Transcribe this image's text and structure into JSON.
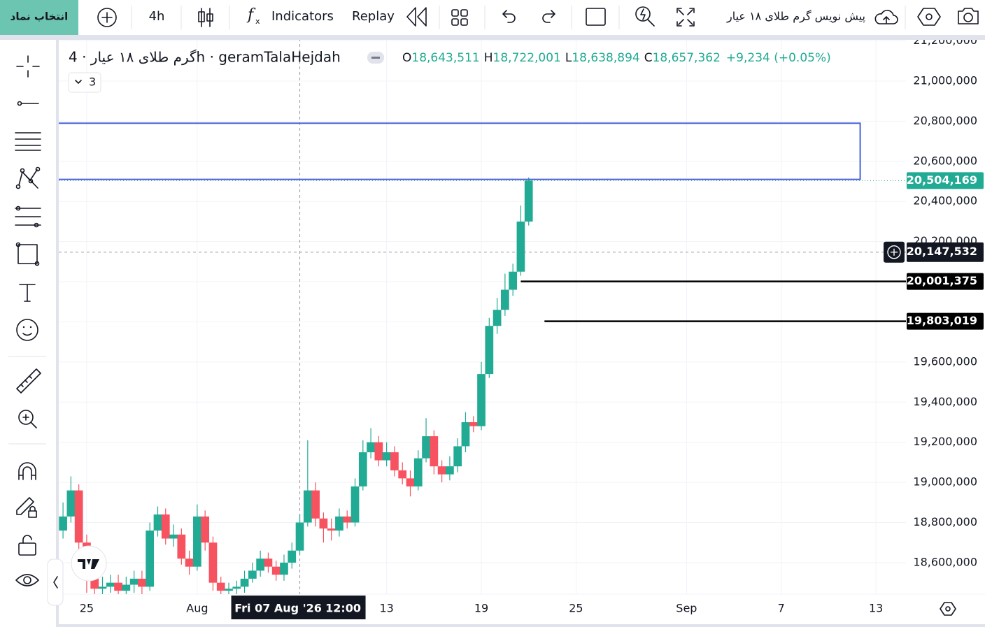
{
  "toolbar": {
    "symbol_button": "انتخاب نماد",
    "interval": "4h",
    "indicators": "Indicators",
    "replay": "Replay",
    "layout_name": "پیش نویس گرم طلای ۱۸ عیار"
  },
  "legend": {
    "symbol": "گرم طلای ۱۸ عیار · 4h · geramTalaHejdah",
    "o_label": "O",
    "open": "18,643,511",
    "h_label": "H",
    "high": "18,722,001",
    "l_label": "L",
    "low": "18,638,894",
    "c_label": "C",
    "close": "18,657,362",
    "change": "+9,234 (+0.05%)",
    "indicators_count": "3"
  },
  "chart_data": {
    "type": "candlestick",
    "up_color": "#22ab94",
    "down_color": "#f7525f",
    "grid": true,
    "xlim": [
      204.23,
      257.9
    ],
    "ylim": [
      18443000,
      21212500
    ],
    "xticks": [
      {
        "value": 206,
        "label": "25"
      },
      {
        "value": 213,
        "label": "Aug"
      },
      {
        "value": 225,
        "label": "13"
      },
      {
        "value": 231,
        "label": "19"
      },
      {
        "value": 237,
        "label": "25"
      },
      {
        "value": 244,
        "label": "Sep"
      },
      {
        "value": 250,
        "label": "7"
      },
      {
        "value": 256,
        "label": "13"
      }
    ],
    "yticks": [
      {
        "value": 18600000,
        "label": "18,600,000"
      },
      {
        "value": 18800000,
        "label": "18,800,000"
      },
      {
        "value": 19000000,
        "label": "19,000,000"
      },
      {
        "value": 19200000,
        "label": "19,200,000"
      },
      {
        "value": 19400000,
        "label": "19,400,000"
      },
      {
        "value": 19600000,
        "label": "19,600,000"
      },
      {
        "value": 19800000,
        "label": "19,800,000"
      },
      {
        "value": 20000000,
        "label": "20,000,000"
      },
      {
        "value": 20200000,
        "label": "20,200,000"
      },
      {
        "value": 20400000,
        "label": "20,400,000"
      },
      {
        "value": 20600000,
        "label": "20,600,000"
      },
      {
        "value": 20800000,
        "label": "20,800,000"
      },
      {
        "value": 21000000,
        "label": "21,000,000"
      },
      {
        "value": 21200000,
        "label": "21,200,000"
      }
    ],
    "x": [
      204.5,
      205,
      205.5,
      206,
      206.5,
      207,
      207.5,
      208,
      208.5,
      209,
      209.5,
      210,
      210.5,
      211,
      211.5,
      212,
      212.5,
      213,
      213.5,
      214,
      214.5,
      215,
      215.5,
      216,
      216.5,
      217,
      217.5,
      218,
      218.5,
      219,
      219.5,
      220,
      220.5,
      221,
      221.5,
      222,
      222.5,
      223,
      223.5,
      224,
      224.5,
      225,
      225.5,
      226,
      226.5,
      227,
      227.5,
      228,
      228.5,
      229,
      229.5,
      230,
      230.5,
      231,
      231.5,
      232,
      232.5,
      233,
      233.5,
      234
    ],
    "open": [
      18760000,
      18830000,
      18960000,
      18700000,
      18520000,
      18470000,
      18480000,
      18500000,
      18460000,
      18490000,
      18520000,
      18480000,
      18760000,
      18840000,
      18720000,
      18740000,
      18620000,
      18580000,
      18830000,
      18700000,
      18500000,
      18460000,
      18470000,
      18480000,
      18520000,
      18560000,
      18620000,
      18580000,
      18540000,
      18600000,
      18660000,
      18800000,
      18960000,
      18820000,
      18770000,
      18760000,
      18830000,
      18800000,
      18980000,
      19150000,
      19200000,
      19110000,
      19150000,
      19060000,
      19020000,
      18980000,
      19120000,
      19230000,
      19080000,
      19040000,
      19080000,
      19180000,
      19300000,
      19280000,
      19540000,
      19780000,
      19860000,
      19960000,
      20050000,
      20300000
    ],
    "high": [
      18900000,
      19030000,
      18990000,
      18740000,
      18560000,
      18530000,
      18540000,
      18540000,
      18530000,
      18560000,
      18560000,
      18800000,
      18880000,
      18870000,
      18790000,
      18770000,
      18660000,
      18890000,
      18860000,
      18730000,
      18530000,
      18500000,
      18510000,
      18560000,
      18600000,
      18660000,
      18650000,
      18610000,
      18640000,
      18700000,
      18840000,
      19210000,
      19000000,
      18850000,
      18820000,
      18870000,
      18860000,
      19020000,
      19210000,
      19270000,
      19230000,
      19200000,
      19180000,
      19100000,
      19060000,
      19160000,
      19320000,
      19260000,
      19110000,
      19130000,
      19220000,
      19350000,
      19330000,
      19600000,
      19820000,
      19920000,
      20040000,
      20090000,
      20380000,
      20520000
    ],
    "low": [
      18720000,
      18800000,
      18660000,
      18450000,
      18420000,
      18430000,
      18450000,
      18420000,
      18430000,
      18450000,
      18440000,
      18460000,
      18730000,
      18690000,
      18680000,
      18590000,
      18540000,
      18560000,
      18660000,
      18460000,
      18430000,
      18430000,
      18440000,
      18450000,
      18500000,
      18530000,
      18550000,
      18510000,
      18510000,
      18570000,
      18640000,
      18780000,
      18780000,
      18700000,
      18710000,
      18730000,
      18770000,
      18780000,
      18960000,
      19120000,
      19080000,
      19080000,
      19030000,
      18990000,
      18930000,
      18960000,
      19100000,
      19040000,
      19000000,
      19010000,
      19050000,
      19150000,
      19250000,
      19260000,
      19520000,
      19740000,
      19830000,
      19930000,
      20030000,
      20280000
    ],
    "close": [
      18830000,
      18960000,
      18700000,
      18520000,
      18470000,
      18480000,
      18500000,
      18460000,
      18490000,
      18520000,
      18480000,
      18760000,
      18840000,
      18720000,
      18740000,
      18620000,
      18580000,
      18830000,
      18700000,
      18500000,
      18460000,
      18470000,
      18480000,
      18520000,
      18560000,
      18620000,
      18580000,
      18540000,
      18600000,
      18660000,
      18800000,
      18960000,
      18820000,
      18770000,
      18760000,
      18830000,
      18800000,
      18980000,
      19150000,
      19200000,
      19110000,
      19150000,
      19060000,
      19020000,
      18980000,
      19120000,
      19230000,
      19080000,
      19040000,
      19080000,
      19180000,
      19300000,
      19280000,
      19540000,
      19780000,
      19860000,
      19960000,
      20050000,
      20300000,
      20504169
    ],
    "last_price": {
      "value": 20504169,
      "label": "20,504,169",
      "color": "#22ab94"
    },
    "crosshair": {
      "x": 219.5,
      "price": {
        "value": 20147532,
        "label": "20,147,532"
      },
      "date_label": "Fri 07 Aug '26",
      "time_label": "12:00"
    },
    "horizontal_lines": [
      {
        "value": 20001375,
        "label": "20,001,375",
        "x_start": 233.5
      },
      {
        "value": 19803019,
        "label": "19,803,019",
        "x_start": 235
      }
    ],
    "rectangle": {
      "x_start": 200,
      "x_end": 255,
      "top": 20790000,
      "bottom": 20510000,
      "color": "#4a5fd8"
    }
  }
}
